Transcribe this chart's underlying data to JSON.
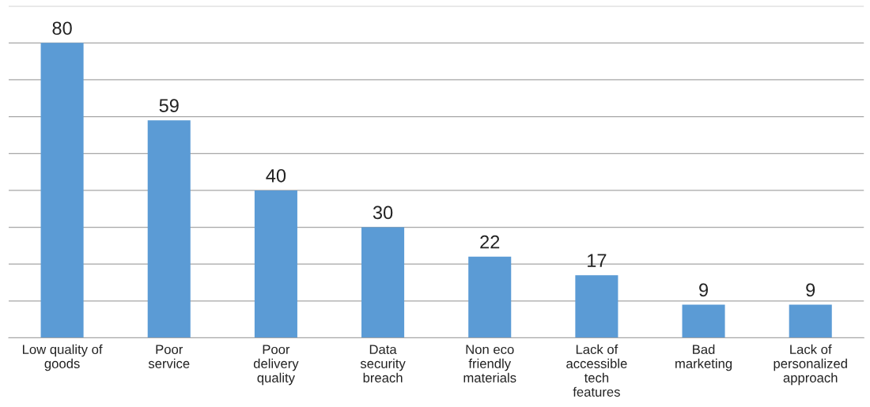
{
  "chart_data": {
    "type": "bar",
    "categories": [
      "Low quality of\ngoods",
      "Poor\nservice",
      "Poor\ndelivery\nquality",
      "Data\nsecurity\nbreach",
      "Non eco\nfriendly\nmaterials",
      "Lack of\naccessible\ntech\nfeatures",
      "Bad\nmarketing",
      "Lack of\npersonalized\napproach"
    ],
    "values": [
      80,
      59,
      40,
      30,
      22,
      17,
      9,
      9
    ],
    "color": "#5b9bd5",
    "ylim": [
      0,
      90
    ],
    "yticks": [
      {
        "value": 0,
        "label": null
      },
      {
        "value": 10,
        "label": null
      },
      {
        "value": 20,
        "label": null
      },
      {
        "value": 30,
        "label": null
      },
      {
        "value": 40,
        "label": null
      },
      {
        "value": 50,
        "label": null
      },
      {
        "value": 60,
        "label": null
      },
      {
        "value": 70,
        "label": null
      },
      {
        "value": 80,
        "label": null
      },
      {
        "value": 90,
        "label": null
      }
    ],
    "grid": "y",
    "data_labels": true,
    "tick_labels": "x",
    "legend": false
  }
}
